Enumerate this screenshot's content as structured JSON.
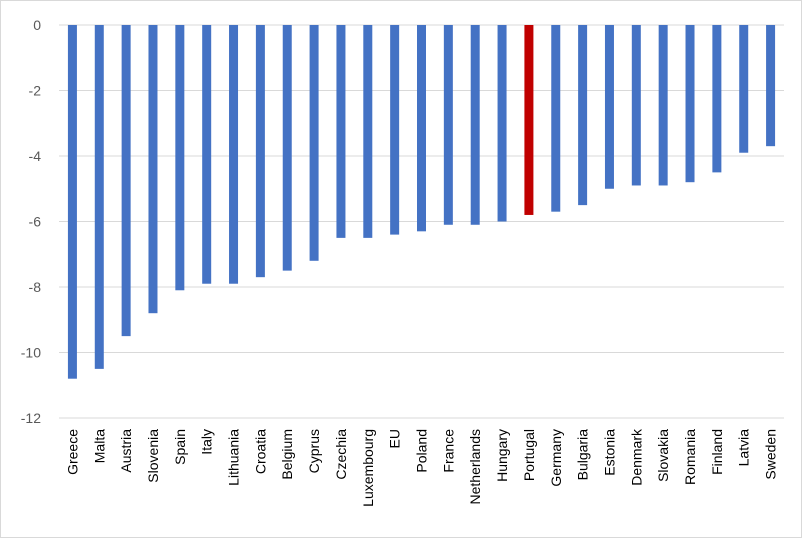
{
  "chart_data": {
    "type": "bar",
    "title": "",
    "xlabel": "",
    "ylabel": "",
    "ylim": [
      -12,
      0
    ],
    "yticks": [
      0,
      -2,
      -4,
      -6,
      -8,
      -10,
      -12
    ],
    "ytick_labels": [
      "0",
      "-2",
      "-4",
      "-6",
      "-8",
      "-10",
      "-12"
    ],
    "grid": "horizontal",
    "categories": [
      "Greece",
      "Malta",
      "Austria",
      "Slovenia",
      "Spain",
      "Italy",
      "Lithuania",
      "Croatia",
      "Belgium",
      "Cyprus",
      "Czechia",
      "Luxembourg",
      "EU",
      "Poland",
      "France",
      "Netherlands",
      "Hungary",
      "Portugal",
      "Germany",
      "Bulgaria",
      "Estonia",
      "Denmark",
      "Slovakia",
      "Romania",
      "Finland",
      "Latvia",
      "Sweden"
    ],
    "values": [
      -10.8,
      -10.5,
      -9.5,
      -8.8,
      -8.1,
      -7.9,
      -7.9,
      -7.7,
      -7.5,
      -7.2,
      -6.5,
      -6.5,
      -6.4,
      -6.3,
      -6.1,
      -6.1,
      -6.0,
      -5.8,
      -5.7,
      -5.5,
      -5.0,
      -4.9,
      -4.9,
      -4.8,
      -4.5,
      -3.9,
      -3.7
    ],
    "highlight_category": "Portugal",
    "colors": {
      "bar": "#4472c4",
      "highlight": "#c00000",
      "grid": "#d9d9d9"
    }
  }
}
